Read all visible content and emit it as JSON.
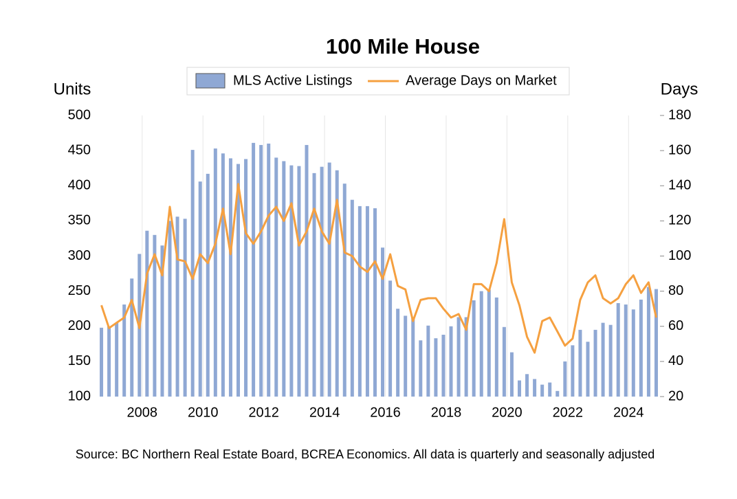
{
  "chart_data": {
    "type": "bar_line",
    "title": "100 Mile House",
    "y_label": "Units",
    "y2_label": "Days",
    "source": "Source: BC Northern Real Estate Board, BCREA Economics. All data is quarterly and seasonally adjusted",
    "categories": [
      null,
      null,
      null,
      null,
      null,
      "2008",
      null,
      null,
      null,
      null,
      null,
      null,
      null,
      "2010",
      null,
      null,
      null,
      null,
      null,
      null,
      null,
      "2012",
      null,
      null,
      null,
      null,
      null,
      null,
      null,
      "2014",
      null,
      null,
      null,
      null,
      null,
      null,
      null,
      "2016",
      null,
      null,
      null,
      null,
      null,
      null,
      null,
      "2018",
      null,
      null,
      null,
      null,
      null,
      null,
      null,
      "2020",
      null,
      null,
      null,
      null,
      null,
      null,
      null,
      "2022",
      null,
      null,
      null,
      null,
      null,
      null,
      null,
      "2024",
      null,
      null,
      null,
      null
    ],
    "series": [
      {
        "name": "MLS Active Listings",
        "type": "bar",
        "color": "#8fa8d4",
        "axis": "y",
        "values": [
          198,
          200,
          205,
          231,
          268,
          303,
          336,
          330,
          315,
          350,
          356,
          353,
          451,
          406,
          417,
          453,
          446,
          439,
          431,
          438,
          461,
          458,
          460,
          440,
          435,
          429,
          428,
          458,
          418,
          427,
          433,
          422,
          403,
          380,
          371,
          371,
          368,
          312,
          265,
          225,
          215,
          213,
          180,
          201,
          183,
          188,
          200,
          213,
          213,
          237,
          250,
          252,
          241,
          199,
          163,
          123,
          132,
          125,
          117,
          120,
          108,
          150,
          173,
          195,
          178,
          195,
          205,
          202,
          233,
          231,
          224,
          238,
          256,
          253
        ]
      },
      {
        "name": "Average Days on Market",
        "type": "line",
        "color": "#f5a040",
        "axis": "y2",
        "values": [
          72,
          59,
          62,
          65,
          75,
          59,
          90,
          101,
          89,
          128,
          98,
          97,
          87,
          101,
          96,
          107,
          127,
          101,
          141,
          113,
          107,
          114,
          123,
          128,
          120,
          130,
          106,
          114,
          127,
          114,
          107,
          132,
          102,
          100,
          94,
          91,
          97,
          87,
          101,
          83,
          81,
          63,
          75,
          76,
          76,
          70,
          65,
          67,
          58,
          84,
          84,
          80,
          96,
          121,
          85,
          72,
          54,
          45,
          63,
          65,
          57,
          49,
          53,
          75,
          85,
          89,
          76,
          73,
          76,
          84,
          89,
          79,
          85,
          65
        ]
      }
    ],
    "ylim": [
      100,
      500
    ],
    "yticks": [
      100,
      150,
      200,
      250,
      300,
      350,
      400,
      450,
      500
    ],
    "y2lim": [
      20,
      180
    ],
    "y2ticks": [
      20,
      40,
      60,
      80,
      100,
      120,
      140,
      160,
      180
    ],
    "grid": true
  }
}
